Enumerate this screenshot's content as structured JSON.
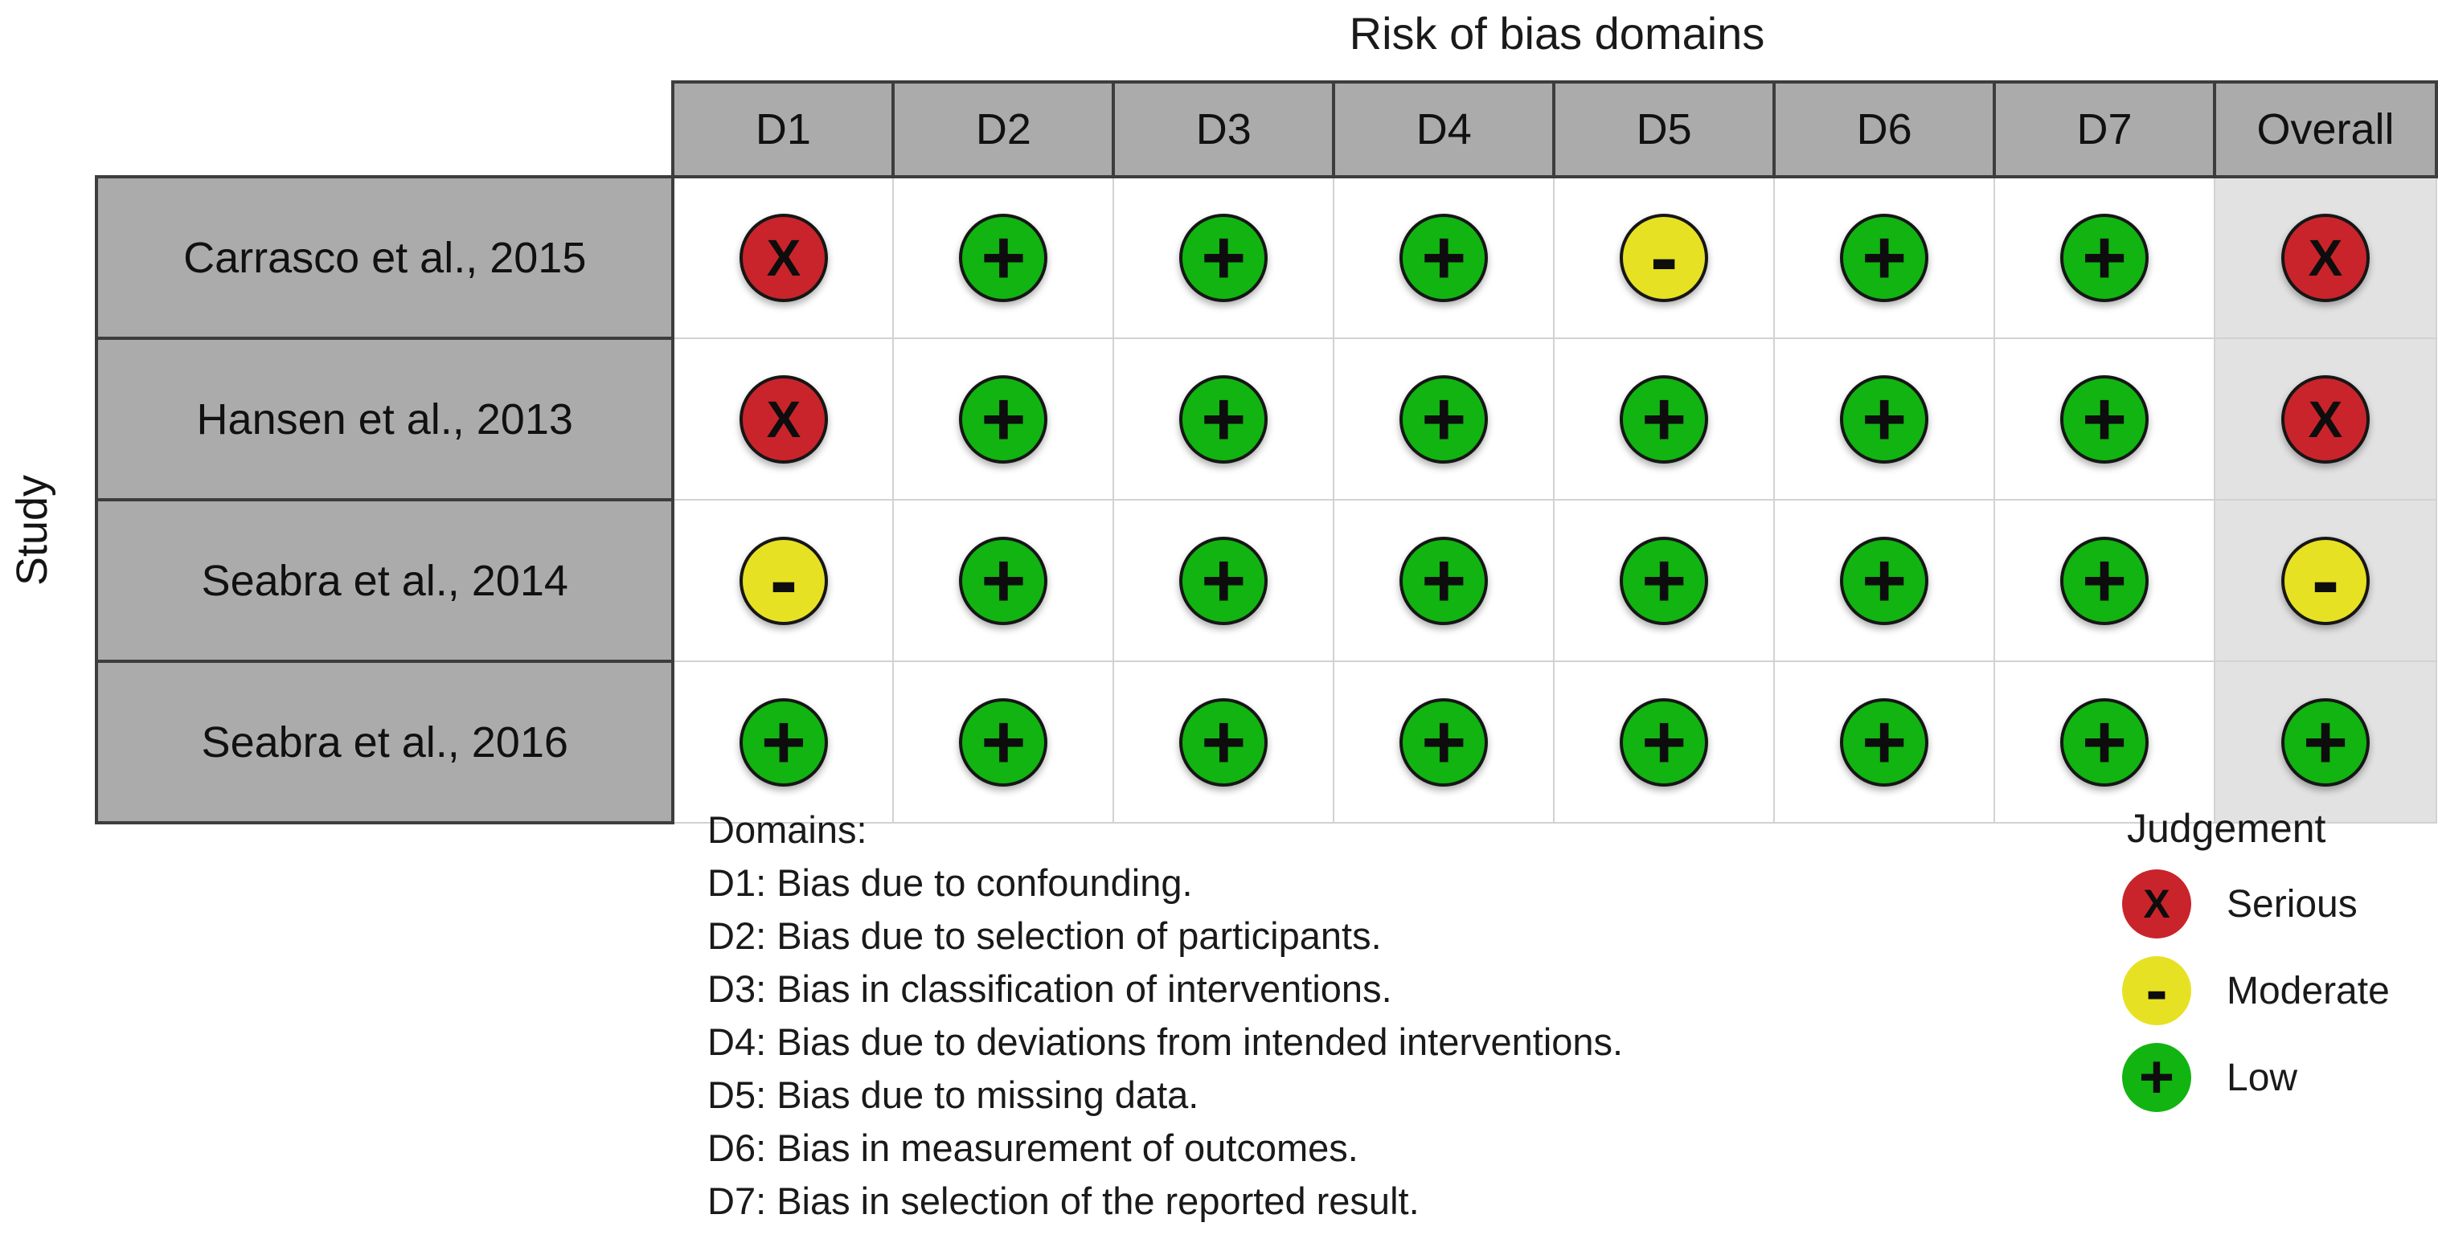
{
  "chart_data": {
    "type": "table",
    "subtype": "risk-of-bias-traffic-light-plot",
    "title": "Risk of bias domains",
    "row_axis_label": "Study",
    "columns": [
      "D1",
      "D2",
      "D3",
      "D4",
      "D5",
      "D6",
      "D7",
      "Overall"
    ],
    "rows": [
      {
        "study": "Carrasco et al., 2015",
        "judgments": [
          "serious",
          "low",
          "low",
          "low",
          "moderate",
          "low",
          "low",
          "serious"
        ]
      },
      {
        "study": "Hansen et al., 2013",
        "judgments": [
          "serious",
          "low",
          "low",
          "low",
          "low",
          "low",
          "low",
          "serious"
        ]
      },
      {
        "study": "Seabra et al., 2014",
        "judgments": [
          "moderate",
          "low",
          "low",
          "low",
          "low",
          "low",
          "low",
          "moderate"
        ]
      },
      {
        "study": "Seabra et al., 2016",
        "judgments": [
          "low",
          "low",
          "low",
          "low",
          "low",
          "low",
          "low",
          "low"
        ]
      }
    ],
    "judgment_scale": [
      "low",
      "moderate",
      "serious"
    ],
    "legend_position": "bottom-right",
    "grid": true
  },
  "judgment_styles": {
    "serious": {
      "symbol": "X",
      "color": "#c9242b",
      "label": "Serious"
    },
    "moderate": {
      "symbol": "-",
      "color": "#e7e123",
      "label": "Moderate"
    },
    "low": {
      "symbol": "+",
      "color": "#11b411",
      "label": "Low"
    }
  },
  "colors": {
    "header_bg": "#ababab",
    "study_col_bg": "#ababab",
    "overall_col_bg": "#e2e2e2",
    "body_bg": "#ffffff",
    "serious": "#c9242b",
    "moderate": "#e7e123",
    "low": "#11b411"
  },
  "domains_note": {
    "heading": "Domains:",
    "items": [
      "D1: Bias due to confounding.",
      "D2: Bias due to selection of participants.",
      "D3: Bias in classification of interventions.",
      "D4: Bias due to deviations from intended interventions.",
      "D5: Bias due to missing data.",
      "D6: Bias in measurement of outcomes.",
      "D7: Bias in selection of the reported result."
    ]
  },
  "legend": {
    "title": "Judgement",
    "entries": [
      {
        "judgment": "serious",
        "symbol": "X",
        "label": "Serious"
      },
      {
        "judgment": "moderate",
        "symbol": "-",
        "label": "Moderate"
      },
      {
        "judgment": "low",
        "symbol": "+",
        "label": "Low"
      }
    ]
  }
}
